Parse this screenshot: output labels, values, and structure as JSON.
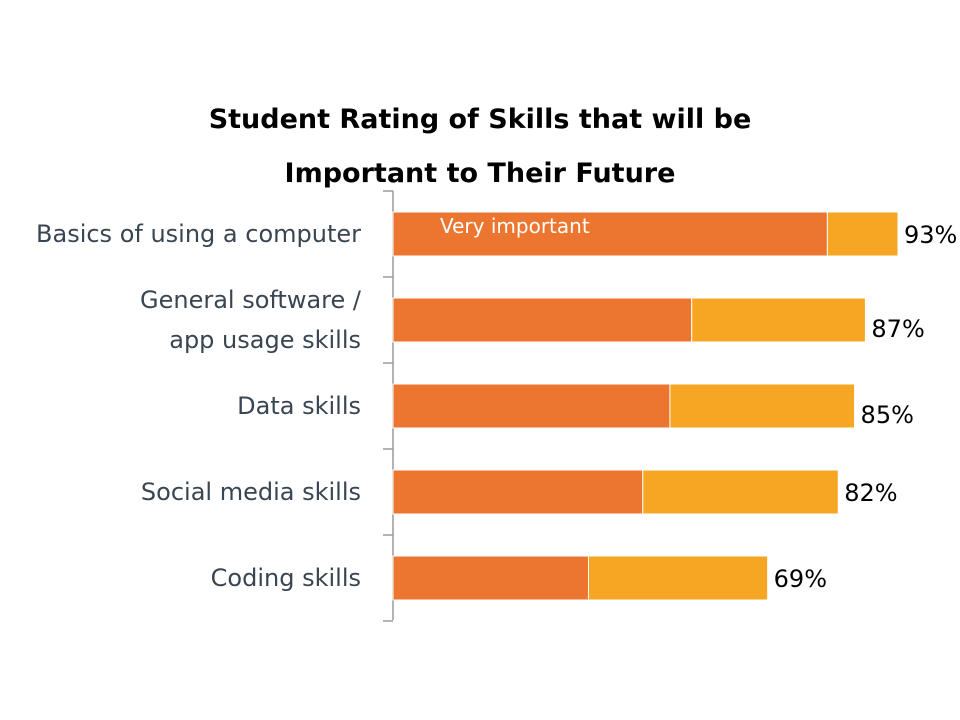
{
  "chart_data": {
    "type": "bar",
    "orientation": "horizontal",
    "stacked": true,
    "title": "Student Rating of Skills that will be Important to Their Future",
    "title_lines": [
      "Student Rating of Skills that will be",
      "Important to Their Future"
    ],
    "categories": [
      "Basics of using a computer",
      "General software / app usage skills",
      "Data skills",
      "Social media skills",
      "Coding skills"
    ],
    "category_lines": [
      [
        "Basics of using a computer"
      ],
      [
        "General software /",
        "app usage skills"
      ],
      [
        "Data skills"
      ],
      [
        "Social media skills"
      ],
      [
        "Coding skills"
      ]
    ],
    "series": [
      {
        "name": "Very important",
        "color": "#ec7530",
        "values": [
          80,
          55,
          51,
          46,
          36
        ]
      },
      {
        "color": "#f6a623",
        "values": [
          13,
          32,
          34,
          36,
          33
        ]
      }
    ],
    "totals": [
      93,
      87,
      85,
      82,
      69
    ],
    "total_labels": [
      "93%",
      "87%",
      "85%",
      "82%",
      "69%"
    ],
    "xlim": [
      0,
      100
    ],
    "grid": false,
    "legend": "none"
  }
}
